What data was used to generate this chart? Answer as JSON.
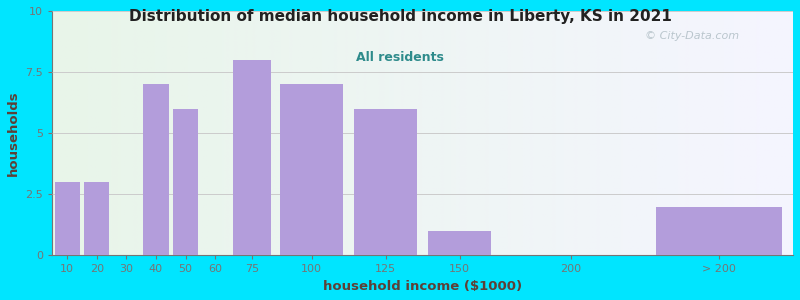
{
  "title": "Distribution of median household income in Liberty, KS in 2021",
  "subtitle": "All residents",
  "xlabel": "household income ($1000)",
  "ylabel": "households",
  "bar_labels": [
    "10",
    "20",
    "30",
    "40",
    "50",
    "60",
    "75",
    "100",
    "125",
    "150",
    "200",
    "> 200"
  ],
  "bar_values": [
    3,
    3,
    0,
    7,
    6,
    0,
    8,
    7,
    6,
    1,
    0,
    2
  ],
  "bar_color": "#b39ddb",
  "ylim": [
    0,
    10
  ],
  "yticks": [
    0,
    2.5,
    5,
    7.5,
    10
  ],
  "bg_color": "#00e5ff",
  "plot_bg_left": "#e8f5e9",
  "plot_bg_right": "#f5f5ff",
  "title_color": "#212121",
  "subtitle_color": "#2e8b8b",
  "axis_label_color": "#5d4037",
  "tick_color": "#757575",
  "grid_color": "#cccccc",
  "watermark_text": "© City-Data.com",
  "watermark_color": "#b0bec5",
  "edges": [
    0,
    10,
    20,
    30,
    40,
    50,
    60,
    75,
    100,
    125,
    150,
    200,
    250
  ]
}
